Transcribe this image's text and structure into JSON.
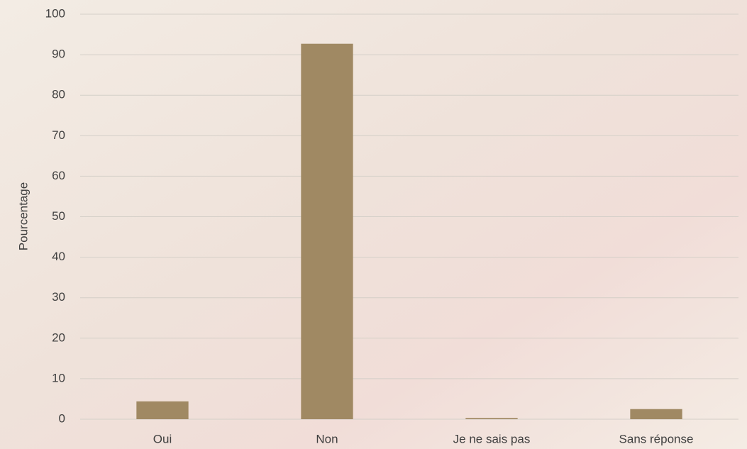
{
  "chart_data": {
    "type": "bar",
    "y_label": "Pourcentage",
    "categories": [
      "Oui",
      "Non",
      "Je ne sais pas",
      "Sans réponse"
    ],
    "values": [
      4.4,
      92.7,
      0.3,
      2.5
    ],
    "color": "#a08963",
    "ylim": [
      0,
      100
    ],
    "yticks": [
      0,
      10,
      20,
      30,
      40,
      50,
      60,
      70,
      80,
      90,
      100
    ],
    "grid": true
  }
}
